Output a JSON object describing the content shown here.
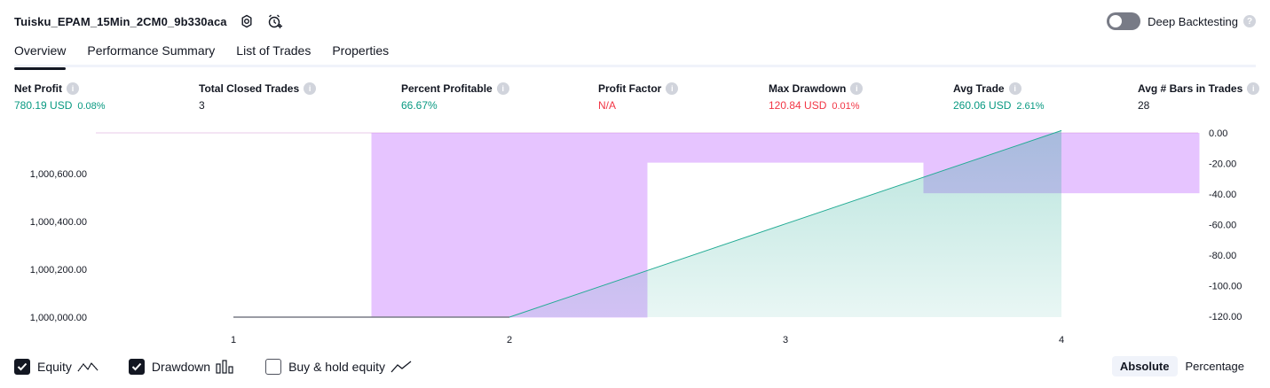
{
  "header": {
    "strategy_title": "Tuisku_EPAM_15Min_2CM0_9b330aca"
  },
  "deep_backtesting": {
    "label": "Deep Backtesting",
    "enabled": false,
    "help_glyph": "?"
  },
  "tabs": [
    {
      "label": "Overview",
      "active": true
    },
    {
      "label": "Performance Summary",
      "active": false
    },
    {
      "label": "List of Trades",
      "active": false
    },
    {
      "label": "Properties",
      "active": false
    }
  ],
  "metrics": [
    {
      "label": "Net Profit",
      "value": "780.19 USD",
      "pct": "0.08%",
      "color": "green"
    },
    {
      "label": "Total Closed Trades",
      "value": "3",
      "pct": "",
      "color": "dark"
    },
    {
      "label": "Percent Profitable",
      "value": "66.67%",
      "pct": "",
      "color": "green"
    },
    {
      "label": "Profit Factor",
      "value": "N/A",
      "pct": "",
      "color": "red"
    },
    {
      "label": "Max Drawdown",
      "value": "120.84 USD",
      "pct": "0.01%",
      "color": "red"
    },
    {
      "label": "Avg Trade",
      "value": "260.06 USD",
      "pct": "2.61%",
      "color": "green"
    },
    {
      "label": "Avg # Bars in Trades",
      "value": "28",
      "pct": "",
      "color": "dark"
    }
  ],
  "chart_data": {
    "type": "area",
    "x": [
      1,
      2,
      3,
      4
    ],
    "equity_axis": {
      "ticks": [
        "1,000,000.00",
        "1,000,200.00",
        "1,000,400.00",
        "1,000,600.00"
      ],
      "tick_values": [
        1000000,
        1000200,
        1000400,
        1000600
      ]
    },
    "drawdown_axis": {
      "ticks": [
        "0.00",
        "-20.00",
        "-40.00",
        "-60.00",
        "-80.00",
        "-100.00",
        "-120.00"
      ],
      "tick_values": [
        0,
        -20,
        -40,
        -60,
        -80,
        -100,
        -120
      ]
    },
    "x_ticks": [
      "1",
      "2",
      "3",
      "4"
    ],
    "series": [
      {
        "name": "Equity",
        "values": [
          1000000,
          1000000,
          1000390,
          1000780
        ]
      },
      {
        "name": "Drawdown",
        "values": [
          0,
          -120.84,
          -19.5,
          -39.5
        ]
      }
    ],
    "buy_hold_points": [
      [
        1,
        1000000
      ],
      [
        2,
        1000000
      ]
    ],
    "colors": {
      "equity_line": "#22ab94",
      "equity_fill": "#22ab94",
      "drawdown_fill": "#c77dff",
      "buy_hold_line": "#787b86"
    }
  },
  "legend": [
    {
      "label": "Equity",
      "checked": true,
      "icon": "equity-line-icon"
    },
    {
      "label": "Drawdown",
      "checked": true,
      "icon": "drawdown-bars-icon"
    },
    {
      "label": "Buy & hold equity",
      "checked": false,
      "icon": "buy-hold-line-icon"
    }
  ],
  "modes": [
    {
      "label": "Absolute",
      "active": true
    },
    {
      "label": "Percentage",
      "active": false
    }
  ]
}
